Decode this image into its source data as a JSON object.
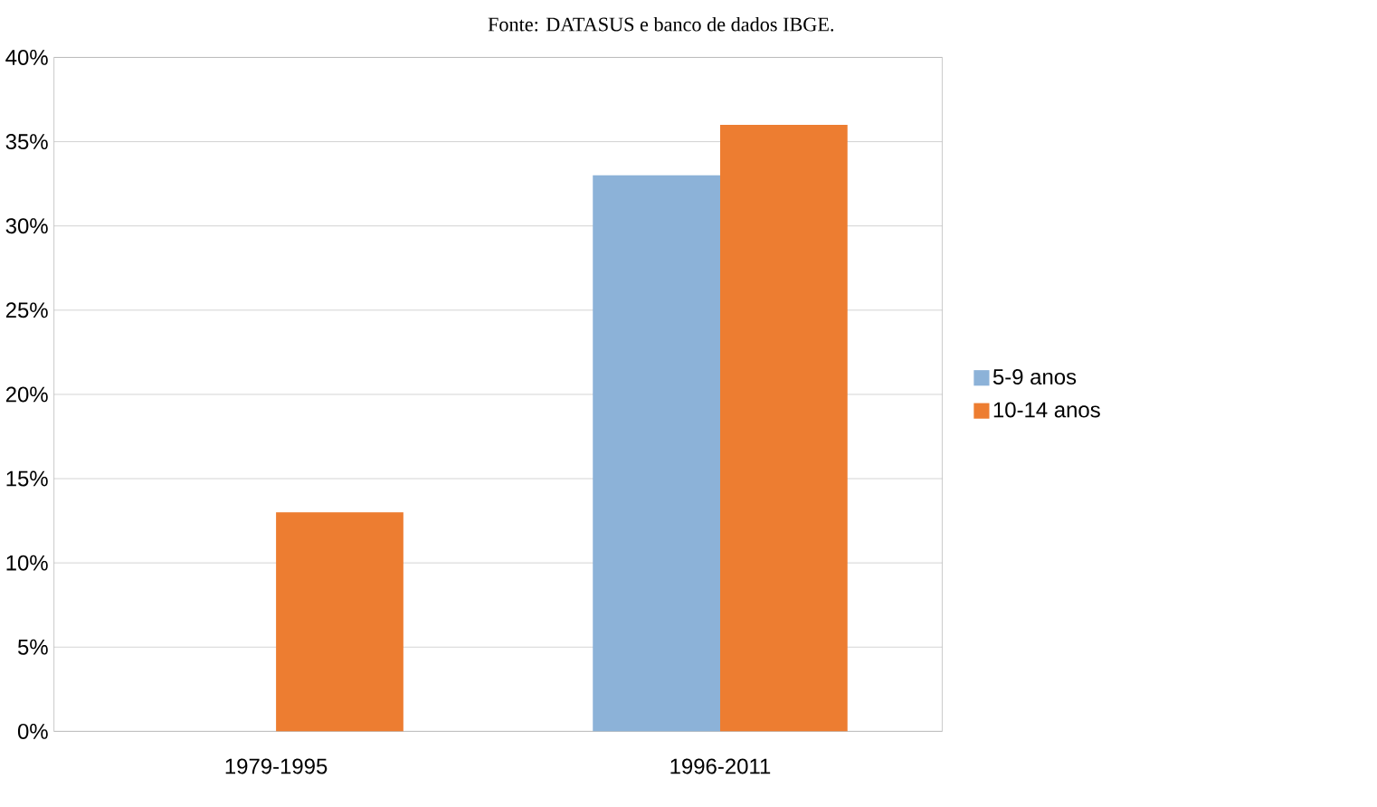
{
  "chart_data": {
    "type": "bar",
    "annotations": [
      "Fonte: DATASUS e banco de dados IBGE."
    ],
    "categories": [
      "1979-1995",
      "1996-2011"
    ],
    "series": [
      {
        "name": "5-9 anos",
        "color": "#8cb2d8",
        "values": [
          null,
          33
        ]
      },
      {
        "name": "10-14 anos",
        "color": "#ed7d31",
        "values": [
          13,
          36
        ]
      }
    ],
    "ylim": [
      0,
      40
    ],
    "yticks": [
      {
        "value": 0,
        "label": "0%"
      },
      {
        "value": 5,
        "label": "5%"
      },
      {
        "value": 10,
        "label": "10%"
      },
      {
        "value": 15,
        "label": "15%"
      },
      {
        "value": 20,
        "label": "20%"
      },
      {
        "value": 25,
        "label": "25%"
      },
      {
        "value": 30,
        "label": "30%"
      },
      {
        "value": 35,
        "label": "35%"
      },
      {
        "value": 40,
        "label": "40%"
      }
    ],
    "grid": "y",
    "legend": "right"
  }
}
